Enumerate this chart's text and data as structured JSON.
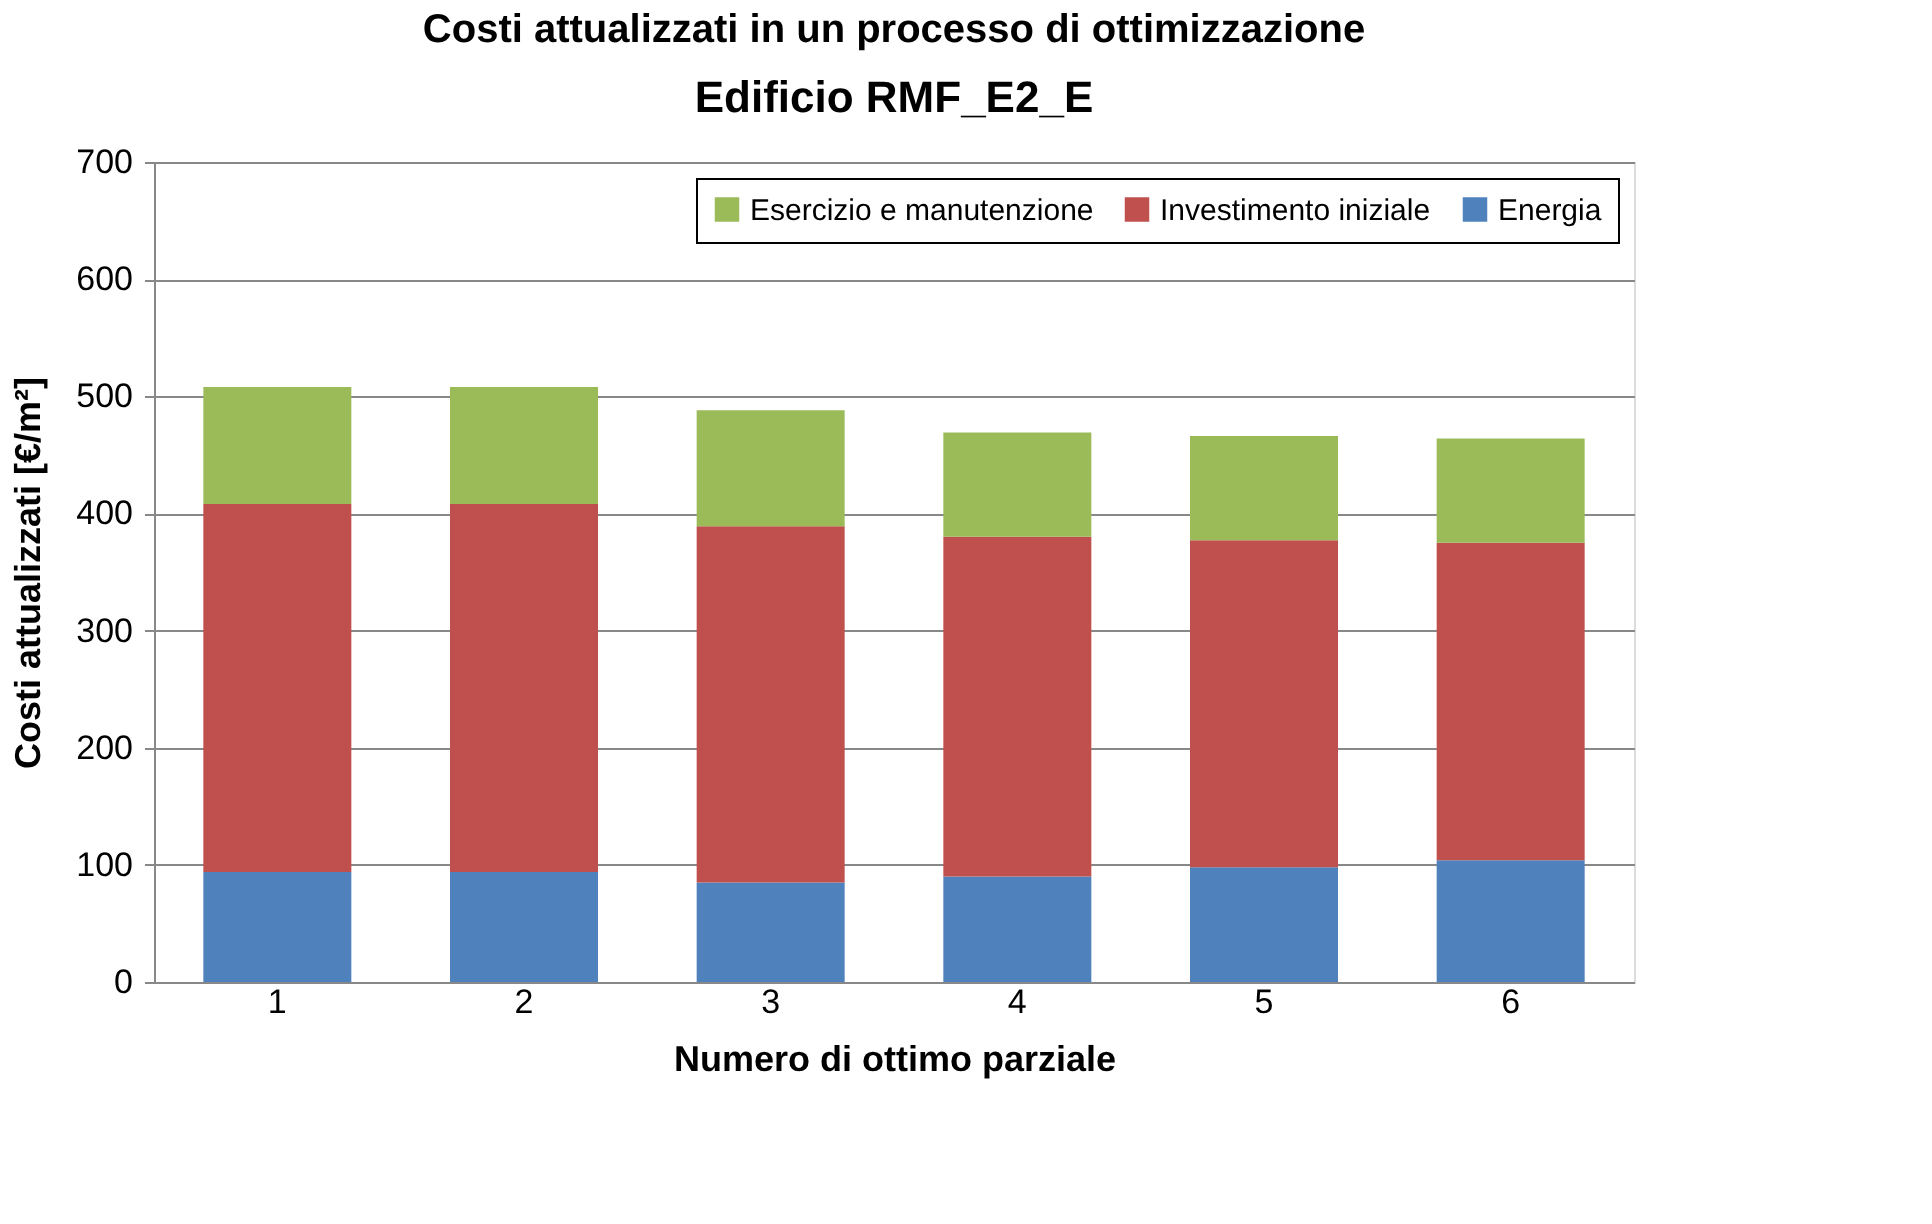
{
  "chart_data": {
    "type": "bar",
    "title": "Costi attualizzati in un processo di ottimizzazione",
    "subtitle": "Edificio RMF_E2_E",
    "xlabel": "Numero di ottimo parziale",
    "ylabel": "Costi attualizzati [€/m²]",
    "categories": [
      "1",
      "2",
      "3",
      "4",
      "5",
      "6"
    ],
    "stacked": true,
    "series": [
      {
        "name": "Energia",
        "color": "#4f81bd",
        "values": [
          94,
          94,
          85,
          90,
          98,
          104
        ]
      },
      {
        "name": "Investimento iniziale",
        "color": "#c0504d",
        "values": [
          314,
          314,
          304,
          290,
          279,
          271
        ]
      },
      {
        "name": "Esercizio e manutenzione",
        "color": "#9bbb59",
        "values": [
          100,
          100,
          99,
          89,
          89,
          89
        ]
      }
    ],
    "ylim": [
      0,
      700
    ],
    "yticks": [
      0,
      100,
      200,
      300,
      400,
      500,
      600,
      700
    ],
    "grid": "y",
    "legend": "top right"
  }
}
